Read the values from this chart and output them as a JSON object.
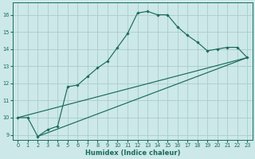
{
  "xlabel": "Humidex (Indice chaleur)",
  "bg_color": "#cce8e8",
  "grid_color": "#aacccc",
  "line_color": "#1a6b5a",
  "xlim": [
    -0.5,
    23.5
  ],
  "ylim": [
    8.7,
    16.7
  ],
  "yticks": [
    9,
    10,
    11,
    12,
    13,
    14,
    15,
    16
  ],
  "xticks": [
    0,
    1,
    2,
    3,
    4,
    5,
    6,
    7,
    8,
    9,
    10,
    11,
    12,
    13,
    14,
    15,
    16,
    17,
    18,
    19,
    20,
    21,
    22,
    23
  ],
  "series1_x": [
    0,
    1,
    2,
    3,
    4,
    5,
    6,
    7,
    8,
    9,
    10,
    11,
    12,
    13,
    14,
    15,
    16,
    17,
    18,
    19,
    20,
    21,
    22,
    23
  ],
  "series1_y": [
    10.0,
    10.0,
    8.9,
    9.3,
    9.5,
    11.8,
    11.9,
    12.4,
    12.9,
    13.3,
    14.1,
    14.9,
    16.1,
    16.2,
    16.0,
    16.0,
    15.3,
    14.8,
    14.4,
    13.9,
    14.0,
    14.1,
    14.1,
    13.5
  ],
  "line1_x": [
    0,
    23
  ],
  "line1_y": [
    10.0,
    13.5
  ],
  "line2_x": [
    2,
    23
  ],
  "line2_y": [
    8.9,
    13.5
  ]
}
